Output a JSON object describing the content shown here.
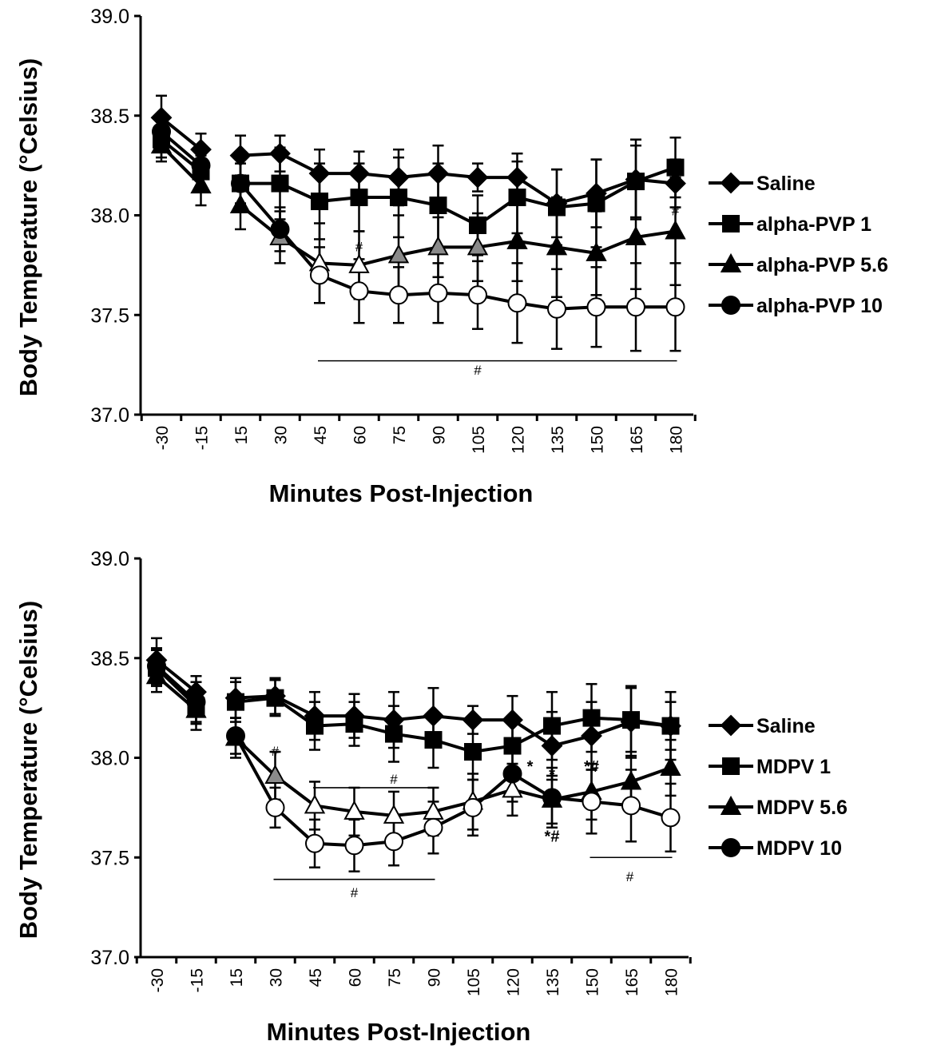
{
  "colors": {
    "black": "#000000",
    "white": "#ffffff",
    "gray": "#8a8a8a"
  },
  "chart_data": [
    {
      "type": "line",
      "ylabel": "Body Temperature (°Celsius)",
      "xlabel": "Minutes Post-Injection",
      "ylim": [
        37.0,
        39.0
      ],
      "yticks": [
        "37.0",
        "37.5",
        "38.0",
        "38.5",
        "39.0"
      ],
      "categories": [
        "-30",
        "-15",
        "15",
        "30",
        "45",
        "60",
        "75",
        "90",
        "105",
        "120",
        "135",
        "150",
        "165",
        "180"
      ],
      "legend_position": "right",
      "series": [
        {
          "name": "Saline",
          "marker": "diamond",
          "values": [
            38.49,
            38.33,
            38.3,
            38.31,
            38.21,
            38.21,
            38.19,
            38.21,
            38.19,
            38.19,
            38.06,
            38.11,
            38.18,
            38.16
          ],
          "err": [
            0.11,
            0.08,
            0.1,
            0.09,
            0.12,
            0.11,
            0.14,
            0.14,
            0.07,
            0.12,
            0.17,
            0.17,
            0.2,
            0.12
          ],
          "fills": [
            "black",
            "black",
            "black",
            "black",
            "black",
            "black",
            "black",
            "black",
            "black",
            "black",
            "black",
            "black",
            "black",
            "black"
          ]
        },
        {
          "name": "alpha-PVP 1",
          "marker": "square",
          "values": [
            38.38,
            38.22,
            38.16,
            38.16,
            38.07,
            38.09,
            38.09,
            38.05,
            37.95,
            38.09,
            38.04,
            38.06,
            38.17,
            38.24
          ],
          "err": [
            0.09,
            0.08,
            0.1,
            0.18,
            0.19,
            0.17,
            0.2,
            0.21,
            0.15,
            0.18,
            0.19,
            0.22,
            0.18,
            0.15
          ],
          "fills": [
            "black",
            "black",
            "black",
            "black",
            "black",
            "black",
            "black",
            "black",
            "black",
            "black",
            "black",
            "black",
            "black",
            "black"
          ]
        },
        {
          "name": "alpha-PVP 5.6",
          "marker": "triangle",
          "values": [
            38.35,
            38.15,
            38.05,
            37.89,
            37.76,
            37.75,
            37.8,
            37.84,
            37.84,
            37.87,
            37.84,
            37.81,
            37.89,
            37.92
          ],
          "err": [
            0.08,
            0.1,
            0.12,
            0.13,
            0.2,
            0.17,
            0.2,
            0.15,
            0.17,
            0.2,
            0.25,
            0.21,
            0.26,
            0.27
          ],
          "fills": [
            "black",
            "black",
            "black",
            "gray",
            "white",
            "white",
            "gray",
            "gray",
            "gray",
            "black",
            "black",
            "black",
            "black",
            "black"
          ]
        },
        {
          "name": "alpha-PVP 10",
          "marker": "circle",
          "values": [
            38.42,
            38.25,
            38.16,
            37.93,
            37.7,
            37.62,
            37.6,
            37.61,
            37.6,
            37.56,
            37.53,
            37.54,
            37.54,
            37.54
          ],
          "err": [
            0.08,
            0.1,
            0.12,
            0.11,
            0.14,
            0.16,
            0.14,
            0.15,
            0.17,
            0.2,
            0.2,
            0.2,
            0.22,
            0.22
          ],
          "fills": [
            "black",
            "black",
            "black",
            "black",
            "white",
            "white",
            "white",
            "white",
            "white",
            "white",
            "white",
            "white",
            "white",
            "white"
          ]
        }
      ],
      "annotations": [
        {
          "text": "#",
          "x": "60",
          "y": 37.82
        },
        {
          "text": "#",
          "x": "180",
          "y": 38.0
        },
        {
          "text": "#",
          "x": "105",
          "y": 37.2
        }
      ],
      "brackets": [
        {
          "from": "45",
          "to": "180",
          "y": 37.27
        }
      ]
    },
    {
      "type": "line",
      "ylabel": "Body Temperature (°Celsius)",
      "xlabel": "Minutes Post-Injection",
      "ylim": [
        37.0,
        39.0
      ],
      "yticks": [
        "37.0",
        "37.5",
        "38.0",
        "38.5",
        "39.0"
      ],
      "categories": [
        "-30",
        "-15",
        "15",
        "30",
        "45",
        "60",
        "75",
        "90",
        "105",
        "120",
        "135",
        "150",
        "165",
        "180"
      ],
      "legend_position": "right",
      "series": [
        {
          "name": "Saline",
          "marker": "diamond",
          "values": [
            38.49,
            38.33,
            38.3,
            38.31,
            38.21,
            38.21,
            38.19,
            38.21,
            38.19,
            38.19,
            38.06,
            38.11,
            38.18,
            38.16
          ],
          "err": [
            0.11,
            0.08,
            0.1,
            0.09,
            0.12,
            0.11,
            0.14,
            0.14,
            0.07,
            0.12,
            0.17,
            0.17,
            0.18,
            0.12
          ],
          "fills": [
            "black",
            "black",
            "black",
            "black",
            "black",
            "black",
            "black",
            "black",
            "black",
            "black",
            "black",
            "black",
            "black",
            "black"
          ]
        },
        {
          "name": "MDPV 1",
          "marker": "square",
          "values": [
            38.45,
            38.26,
            38.28,
            38.3,
            38.16,
            38.17,
            38.12,
            38.09,
            38.03,
            38.06,
            38.16,
            38.2,
            38.19,
            38.16
          ],
          "err": [
            0.09,
            0.09,
            0.1,
            0.09,
            0.12,
            0.11,
            0.14,
            0.14,
            0.14,
            0.15,
            0.17,
            0.17,
            0.16,
            0.17
          ],
          "fills": [
            "black",
            "black",
            "black",
            "black",
            "black",
            "black",
            "black",
            "black",
            "black",
            "black",
            "black",
            "black",
            "black",
            "black"
          ]
        },
        {
          "name": "MDPV 5.6",
          "marker": "triangle",
          "values": [
            38.41,
            38.24,
            38.1,
            37.91,
            37.76,
            37.73,
            37.71,
            37.73,
            37.78,
            37.84,
            37.79,
            37.83,
            37.88,
            37.95
          ],
          "err": [
            0.08,
            0.1,
            0.1,
            0.12,
            0.12,
            0.12,
            0.12,
            0.12,
            0.14,
            0.13,
            0.12,
            0.14,
            0.13,
            0.14
          ],
          "fills": [
            "black",
            "black",
            "black",
            "gray",
            "white",
            "white",
            "white",
            "white",
            "white",
            "white",
            "black",
            "black",
            "black",
            "black"
          ]
        },
        {
          "name": "MDPV 10",
          "marker": "circle",
          "values": [
            38.46,
            38.28,
            38.11,
            37.75,
            37.57,
            37.56,
            37.58,
            37.65,
            37.75,
            37.92,
            37.8,
            37.78,
            37.76,
            37.7
          ],
          "err": [
            0.09,
            0.1,
            0.09,
            0.1,
            0.12,
            0.13,
            0.12,
            0.13,
            0.14,
            0.14,
            0.15,
            0.16,
            0.18,
            0.17
          ],
          "fills": [
            "black",
            "black",
            "black",
            "white",
            "white",
            "white",
            "white",
            "white",
            "white",
            "black",
            "black",
            "white",
            "white",
            "white"
          ]
        }
      ],
      "annotations": [
        {
          "text": "#",
          "x": "30",
          "y": 38.01
        },
        {
          "text": "#",
          "x": "75",
          "y": 37.87
        },
        {
          "text": "*",
          "x": "120",
          "y": 37.93,
          "bold": true,
          "dx": 22
        },
        {
          "text": "*",
          "x": "135",
          "y": 37.89,
          "bold": true
        },
        {
          "text": "*#",
          "x": "150",
          "y": 37.93,
          "bold": true
        },
        {
          "text": "*#",
          "x": "135",
          "y": 37.58,
          "bold": true
        },
        {
          "text": "#",
          "x": "60",
          "y": 37.3
        },
        {
          "text": "#",
          "x": "150",
          "y": 37.38,
          "dx": 48
        }
      ],
      "brackets": [
        {
          "from": "45",
          "to": "90",
          "y": 37.85
        },
        {
          "from": "30",
          "to": "90",
          "y": 37.39
        },
        {
          "from": "150",
          "to": "180",
          "y": 37.5
        }
      ]
    }
  ]
}
